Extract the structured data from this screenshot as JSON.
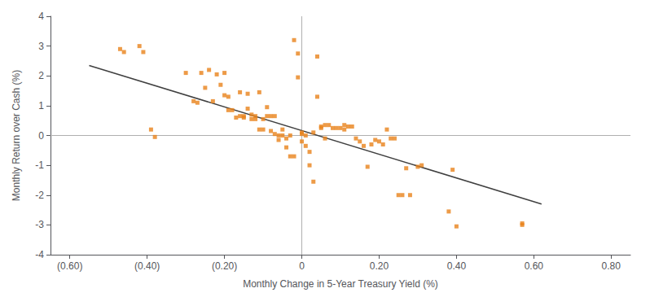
{
  "chart_data": {
    "type": "scatter",
    "xlabel": "Monthly Change in 5-Year Treasury Yield (%)",
    "ylabel": "Monthly Return over Cash (%)",
    "xlim": [
      -0.65,
      0.85
    ],
    "ylim": [
      -4,
      4
    ],
    "xticks": [
      {
        "value": -0.6,
        "label": "(0.60)"
      },
      {
        "value": -0.4,
        "label": "(0.40)"
      },
      {
        "value": -0.2,
        "label": "(0.20)"
      },
      0,
      {
        "value": 0.2,
        "label": "0.20"
      },
      {
        "value": 0.4,
        "label": "0.40"
      },
      {
        "value": 0.6,
        "label": "0.60"
      },
      {
        "value": 0.8,
        "label": "0.80"
      }
    ],
    "yticks": [
      -4,
      -3,
      -2,
      -1,
      0,
      1,
      2,
      3,
      4
    ],
    "grid": false,
    "series": [
      {
        "type": "scatter",
        "color": "#E8821A",
        "marker": "square",
        "x": [
          -0.47,
          -0.46,
          -0.42,
          -0.41,
          -0.39,
          -0.38,
          -0.3,
          -0.28,
          -0.27,
          -0.26,
          -0.25,
          -0.24,
          -0.23,
          -0.22,
          -0.21,
          -0.2,
          -0.2,
          -0.19,
          -0.19,
          -0.18,
          -0.17,
          -0.16,
          -0.16,
          -0.15,
          -0.15,
          -0.14,
          -0.14,
          -0.13,
          -0.13,
          -0.12,
          -0.12,
          -0.11,
          -0.11,
          -0.1,
          -0.1,
          -0.09,
          -0.09,
          -0.08,
          -0.08,
          -0.07,
          -0.07,
          -0.06,
          -0.06,
          -0.05,
          -0.05,
          -0.04,
          -0.04,
          -0.03,
          -0.03,
          -0.02,
          -0.02,
          -0.01,
          -0.01,
          0.0,
          0.0,
          0.0,
          0.01,
          0.01,
          0.02,
          0.02,
          0.03,
          0.03,
          0.04,
          0.04,
          0.05,
          0.05,
          0.06,
          0.06,
          0.07,
          0.08,
          0.09,
          0.1,
          0.11,
          0.11,
          0.12,
          0.13,
          0.14,
          0.15,
          0.16,
          0.17,
          0.18,
          0.19,
          0.2,
          0.21,
          0.22,
          0.23,
          0.24,
          0.25,
          0.26,
          0.27,
          0.28,
          0.3,
          0.31,
          0.38,
          0.39,
          0.4,
          0.57,
          0.57
        ],
        "values": [
          2.9,
          2.8,
          3.0,
          2.8,
          0.2,
          -0.05,
          2.1,
          1.15,
          1.1,
          2.1,
          1.6,
          2.2,
          1.15,
          2.05,
          1.7,
          1.35,
          2.1,
          0.85,
          1.3,
          0.85,
          0.6,
          0.65,
          1.45,
          0.6,
          0.65,
          0.9,
          1.4,
          0.7,
          0.55,
          0.65,
          0.55,
          0.2,
          1.45,
          0.2,
          0.55,
          0.65,
          0.95,
          0.65,
          0.15,
          0.65,
          0.05,
          0.0,
          -0.15,
          0.2,
          0.0,
          -0.1,
          -0.4,
          -0.7,
          0.0,
          -0.7,
          3.2,
          2.75,
          1.95,
          0.1,
          -0.2,
          0.05,
          0.0,
          -0.35,
          -1.0,
          -0.55,
          0.1,
          -1.55,
          2.65,
          1.3,
          0.3,
          0.25,
          -0.1,
          0.35,
          0.35,
          0.25,
          0.25,
          0.25,
          0.35,
          0.2,
          0.3,
          0.3,
          -0.1,
          -0.2,
          -0.35,
          -1.05,
          -0.3,
          -0.15,
          -0.2,
          -0.3,
          0.2,
          -0.1,
          -0.1,
          -2.0,
          -2.0,
          -1.1,
          -2.0,
          -1.05,
          -1.0,
          -2.55,
          -1.15,
          -3.05,
          -3.0,
          -2.95
        ]
      },
      {
        "type": "line",
        "color": "#404040",
        "line_style": "solid",
        "x": [
          -0.55,
          0.62
        ],
        "values": [
          2.35,
          -2.3
        ]
      }
    ],
    "reference_lines": [
      {
        "y": 0,
        "color": "#b0b0b0"
      },
      {
        "x": 0,
        "color": "#b0b0b0"
      }
    ]
  }
}
